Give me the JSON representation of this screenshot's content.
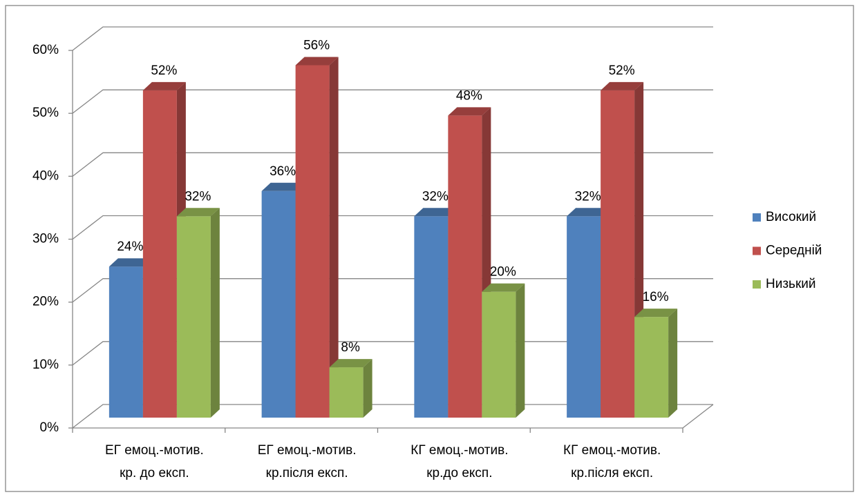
{
  "chart_data": {
    "type": "bar3d",
    "categories": [
      [
        "ЕГ емоц.-мотив.",
        "кр. до експ."
      ],
      [
        "ЕГ емоц.-мотив.",
        "кр.після експ."
      ],
      [
        "КГ емоц.-мотив.",
        "кр.до експ."
      ],
      [
        "КГ емоц.-мотив.",
        "кр.після експ."
      ]
    ],
    "series": [
      {
        "name": "Високий",
        "color": "#4f81bd",
        "values": [
          24,
          36,
          32,
          32
        ],
        "value_labels": [
          "24%",
          "36%",
          "32%",
          "32%"
        ]
      },
      {
        "name": "Середній",
        "color": "#c0504d",
        "values": [
          52,
          56,
          48,
          52
        ],
        "value_labels": [
          "52%",
          "56%",
          "48%",
          "52%"
        ]
      },
      {
        "name": "Низький",
        "color": "#9bbb59",
        "values": [
          32,
          8,
          20,
          16
        ],
        "value_labels": [
          "32%",
          "8%",
          "20%",
          "16%"
        ]
      }
    ],
    "ylim": [
      0,
      60
    ],
    "yticks": [
      {
        "value": 0,
        "label": "0%"
      },
      {
        "value": 10,
        "label": "10%"
      },
      {
        "value": 20,
        "label": "20%"
      },
      {
        "value": 30,
        "label": "30%"
      },
      {
        "value": 40,
        "label": "40%"
      },
      {
        "value": 50,
        "label": "50%"
      },
      {
        "value": 60,
        "label": "60%"
      }
    ],
    "grid": true,
    "legend": "right"
  }
}
